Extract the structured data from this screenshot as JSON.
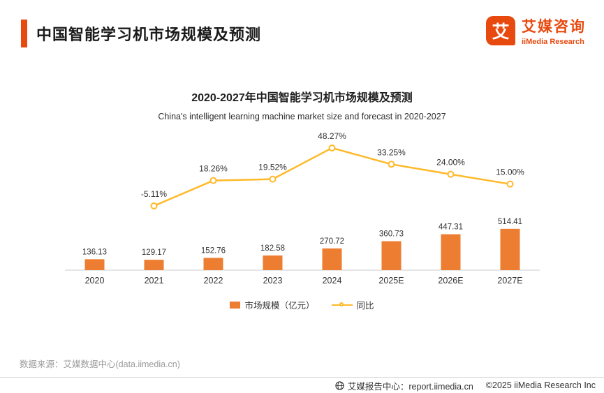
{
  "header": {
    "title": "中国智能学习机市场规模及预测",
    "logo": {
      "icon_char": "艾",
      "brand_cn": "艾媒咨询",
      "brand_en": "iiMedia Research"
    }
  },
  "chart": {
    "title": "2020-2027年中国智能学习机市场规模及预测",
    "subtitle": "China's intelligent learning machine market size and forecast in 2020-2027",
    "legend": [
      {
        "label": "市场规模（亿元）"
      },
      {
        "label": "同比"
      }
    ]
  },
  "chart_data": {
    "type": "bar+line",
    "title": "2020-2027年中国智能学习机市场规模及预测",
    "categories": [
      "2020",
      "2021",
      "2022",
      "2023",
      "2024",
      "2025E",
      "2026E",
      "2027E"
    ],
    "series": [
      {
        "name": "市场规模（亿元）",
        "type": "bar",
        "color": "#ED7D31",
        "values": [
          136.13,
          129.17,
          152.76,
          182.58,
          270.72,
          360.73,
          447.31,
          514.41
        ]
      },
      {
        "name": "同比",
        "type": "line",
        "color": "#FFB929",
        "unit": "%",
        "values": [
          null,
          -5.11,
          18.26,
          19.52,
          48.27,
          33.25,
          24.0,
          15.0
        ]
      }
    ],
    "xlabel": "",
    "ylabel": "",
    "grid": false,
    "legend_position": "bottom"
  },
  "footer": {
    "source": "数据来源：艾媒数据中心(data.iimedia.cn)",
    "report_center": "艾媒报告中心：report.iimedia.cn",
    "copyright": "©2025  iiMedia Research  Inc"
  },
  "colors": {
    "accent": "#E8490F",
    "bar": "#ED7D31",
    "line": "#FFB929",
    "axis": "#cccccc"
  }
}
